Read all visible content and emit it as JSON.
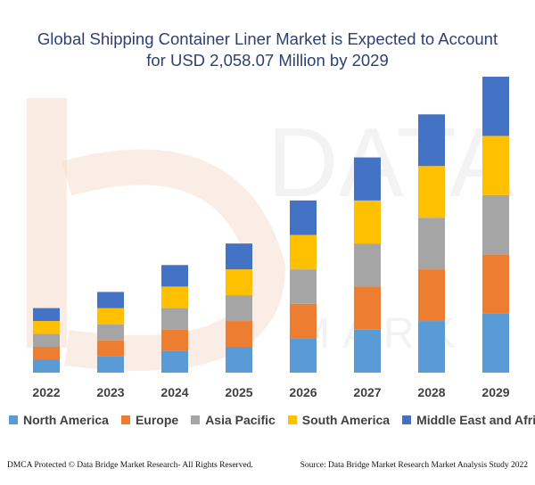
{
  "header": {
    "title_line1": "Global Shipping Container Liner Market is Expected to Account",
    "title_line2": "for USD 2,058.07 Million by 2029"
  },
  "footer": {
    "left": "DMCA Protected © Data Bridge Market Research- All Rights Reserved.",
    "right": "Source: Data Bridge Market Research Market Analysis Study 2022"
  },
  "colors": {
    "north_america": "#5b9bd5",
    "europe": "#ed7d31",
    "asia_pacific": "#a5a5a5",
    "south_america": "#ffc000",
    "middle_east_africa": "#4472c4"
  },
  "chart_data": {
    "type": "bar",
    "stacked": true,
    "categories": [
      "2022",
      "2023",
      "2024",
      "2025",
      "2026",
      "2027",
      "2028",
      "2029"
    ],
    "series": [
      {
        "name": "North America",
        "color": "#5b9bd5",
        "values": [
          12,
          15,
          20,
          24,
          32,
          40,
          48,
          55
        ]
      },
      {
        "name": "Europe",
        "color": "#ed7d31",
        "values": [
          12,
          15,
          20,
          24,
          32,
          40,
          48,
          55
        ]
      },
      {
        "name": "Asia Pacific",
        "color": "#a5a5a5",
        "values": [
          12,
          15,
          20,
          24,
          32,
          40,
          48,
          55
        ]
      },
      {
        "name": "South America",
        "color": "#ffc000",
        "values": [
          12,
          15,
          20,
          24,
          32,
          40,
          48,
          55
        ]
      },
      {
        "name": "Middle East and Africa",
        "color": "#4472c4",
        "values": [
          12,
          15,
          20,
          24,
          32,
          40,
          48,
          55
        ]
      }
    ],
    "ylim": [
      0,
      280
    ],
    "grid": false,
    "legend_position": "bottom"
  }
}
